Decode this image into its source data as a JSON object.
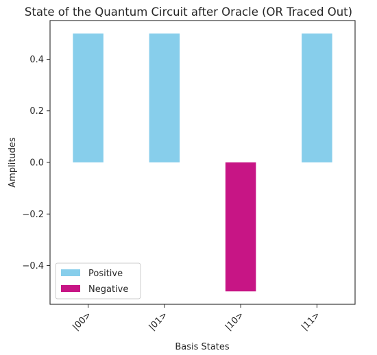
{
  "chart_data": {
    "type": "bar",
    "title": "State of the Quantum Circuit after Oracle (OR Traced Out)",
    "xlabel": "Basis States",
    "ylabel": "Amplitudes",
    "categories": [
      "|00>",
      "|01>",
      "|10>",
      "|11>"
    ],
    "values": [
      0.5,
      0.5,
      -0.5,
      0.5
    ],
    "ylim": [
      -0.55,
      0.55
    ],
    "yticks": [
      -0.4,
      -0.2,
      0.0,
      0.2,
      0.4
    ],
    "ytick_labels": [
      "−0.4",
      "−0.2",
      "0.0",
      "0.2",
      "0.4"
    ],
    "grid": false,
    "legend": {
      "placement": "lower-left",
      "entries": [
        {
          "label": "Positive",
          "color": "#87ceeb"
        },
        {
          "label": "Negative",
          "color": "#c71585"
        }
      ]
    },
    "colors": {
      "positive": "#87ceeb",
      "negative": "#c71585"
    }
  }
}
